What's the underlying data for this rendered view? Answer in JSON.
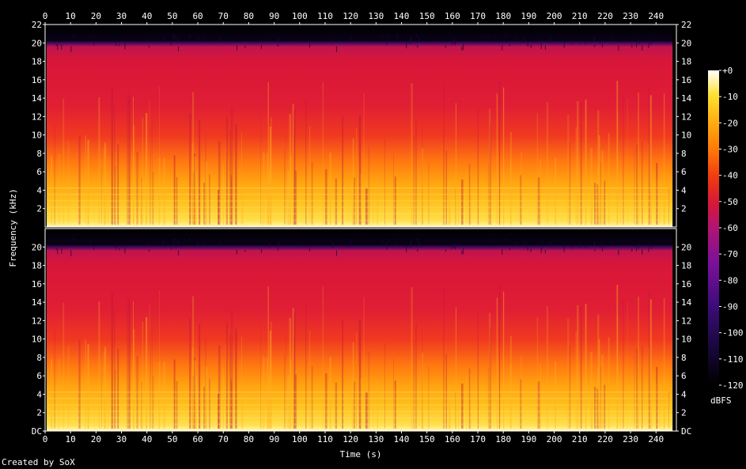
{
  "chart_data": {
    "type": "heatmap",
    "channels": 2,
    "xlabel": "Time (s)",
    "ylabel": "Frequency (kHz)",
    "x_range": [
      0,
      248
    ],
    "x_ticks": [
      0,
      10,
      20,
      30,
      40,
      50,
      60,
      70,
      80,
      90,
      100,
      110,
      120,
      130,
      140,
      150,
      160,
      170,
      180,
      190,
      200,
      210,
      220,
      230,
      240
    ],
    "y_range_khz": [
      0,
      22
    ],
    "y_ticks": [
      {
        "value": 0,
        "label": "DC"
      },
      {
        "value": 2,
        "label": "2"
      },
      {
        "value": 4,
        "label": "4"
      },
      {
        "value": 6,
        "label": "6"
      },
      {
        "value": 8,
        "label": "8"
      },
      {
        "value": 10,
        "label": "10"
      },
      {
        "value": 12,
        "label": "12"
      },
      {
        "value": 14,
        "label": "14"
      },
      {
        "value": 16,
        "label": "16"
      },
      {
        "value": 18,
        "label": "18"
      },
      {
        "value": 20,
        "label": "20"
      },
      {
        "value": 22,
        "label": "22"
      }
    ],
    "colorbar": {
      "label": "dBFS",
      "range": [
        -120,
        0
      ],
      "ticks": [
        "+0",
        "-10",
        "-20",
        "-30",
        "-40",
        "-50",
        "-60",
        "-70",
        "-80",
        "-90",
        "-100",
        "-110",
        "-120"
      ]
    },
    "lowpass_cutoff_khz": 20,
    "content_end_s": 246.5
  },
  "footer": "Created by SoX"
}
